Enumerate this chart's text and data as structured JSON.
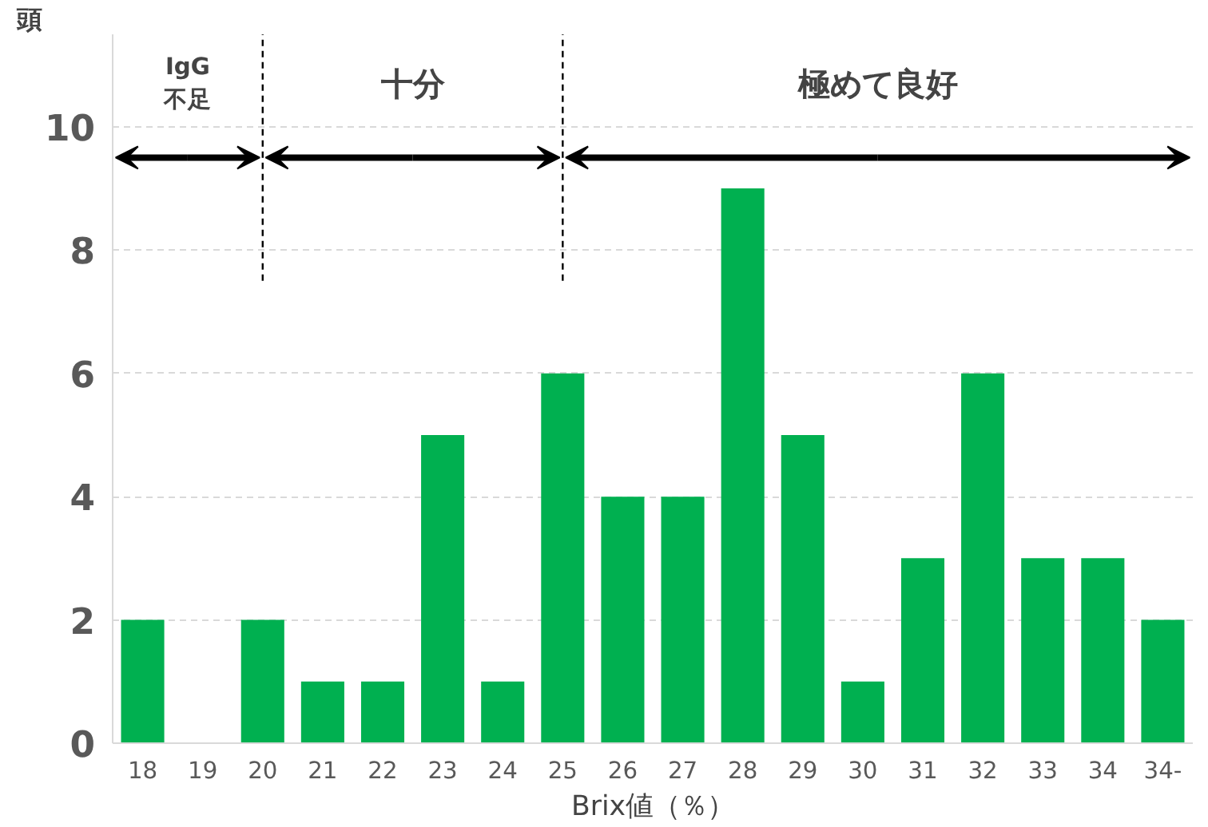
{
  "chart_data": {
    "type": "bar",
    "ylabel": "頭",
    "xlabel": "Brix値（％）",
    "categories": [
      "18",
      "19",
      "20",
      "21",
      "22",
      "23",
      "24",
      "25",
      "26",
      "27",
      "28",
      "29",
      "30",
      "31",
      "32",
      "33",
      "34",
      "34-"
    ],
    "values": [
      2,
      0,
      2,
      1,
      1,
      5,
      1,
      6,
      4,
      4,
      9,
      5,
      1,
      3,
      6,
      3,
      3,
      2
    ],
    "color": "#00b050",
    "ylim": [
      0,
      11.5
    ],
    "yticks": [
      0,
      2,
      4,
      6,
      8,
      10
    ],
    "grid": "y",
    "ref_lines": [
      {
        "axis": "x",
        "value": "20",
        "line_style": "dashed",
        "color": "#000000"
      },
      {
        "axis": "x",
        "value": "25",
        "line_style": "dashed",
        "color": "#000000"
      }
    ],
    "annotations": [
      "IgG\n不足",
      "十分",
      "極めて良好"
    ]
  }
}
